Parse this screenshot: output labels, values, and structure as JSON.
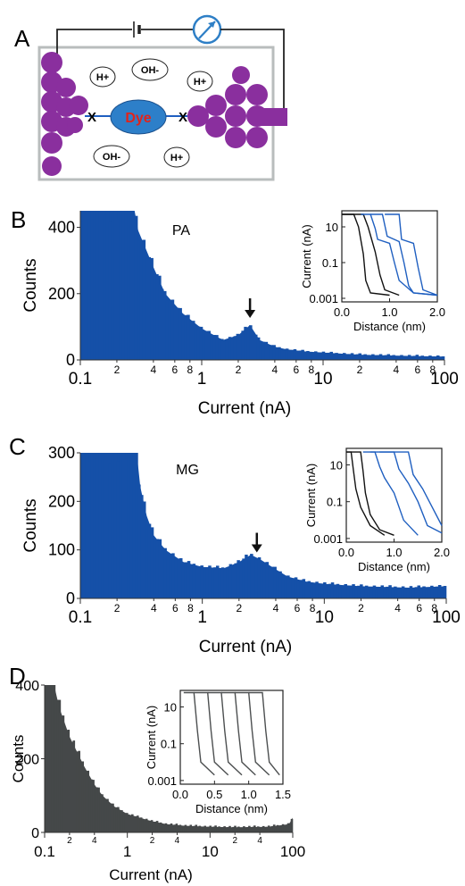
{
  "panels": {
    "A": {
      "letter": "A",
      "dye_label": "Dye",
      "linker_left": "X",
      "linker_right": "X",
      "ions": [
        "H+",
        "OH-",
        "H+",
        "OH-",
        "H+"
      ],
      "colors": {
        "electrode": "#8a2f9e",
        "dye": "#2d7fc9",
        "dye_text": "#e2231a",
        "wire": "#222222",
        "meter": "#2e7fc6",
        "box": "#b9bdbd"
      }
    },
    "B": {
      "letter": "B",
      "label": "PA"
    },
    "C": {
      "letter": "C",
      "label": "MG"
    },
    "D": {
      "letter": "D"
    }
  },
  "chart_data": [
    {
      "panel": "B",
      "type": "bar",
      "title": "PA",
      "xlabel": "Current (nA)",
      "ylabel": "Counts",
      "xscale": "log",
      "xlim": [
        0.1,
        100
      ],
      "ylim": [
        0,
        450
      ],
      "yticks": [
        0,
        200,
        400
      ],
      "xtick_major": [
        "0.1",
        "1",
        "10",
        "100"
      ],
      "xtick_minor": [
        "2",
        "4",
        "6",
        "8"
      ],
      "color": "#1550a8",
      "peak_marker_x": 2.5,
      "x": [
        0.1,
        0.2,
        0.28,
        0.3,
        0.4,
        0.5,
        0.7,
        1.0,
        1.5,
        2.0,
        2.5,
        3.0,
        4.0,
        5.0,
        7.0,
        10.0,
        20.0,
        50.0,
        100.0
      ],
      "values": [
        450,
        450,
        450,
        390,
        280,
        200,
        140,
        95,
        60,
        75,
        105,
        60,
        40,
        32,
        26,
        22,
        16,
        12,
        10
      ],
      "inset": {
        "xlabel": "Distance (nm)",
        "ylabel": "Current (nA)",
        "xlim": [
          0,
          2.0
        ],
        "xticks": [
          "0.0",
          "1.0",
          "2.0"
        ],
        "yscale": "log",
        "yticks": [
          "10",
          "0.1",
          "0.001"
        ],
        "series": [
          {
            "color": "#111111",
            "x": [
              0.0,
              0.25,
              0.35,
              0.45,
              0.5,
              0.6,
              1.0
            ],
            "y": [
              50,
              50,
              10,
              0.3,
              0.01,
              0.002,
              0.0015
            ]
          },
          {
            "color": "#111111",
            "x": [
              0.0,
              0.45,
              0.55,
              0.7,
              0.8,
              0.9,
              1.2
            ],
            "y": [
              50,
              50,
              10,
              0.4,
              0.02,
              0.003,
              0.0015
            ]
          },
          {
            "color": "#1f5fc0",
            "x": [
              0.4,
              0.6,
              0.7,
              0.75,
              1.0,
              1.1,
              1.2,
              1.5,
              2.0
            ],
            "y": [
              50,
              50,
              8,
              2,
              1.2,
              0.1,
              0.01,
              0.002,
              0.0015
            ]
          },
          {
            "color": "#1f5fc0",
            "x": [
              0.6,
              0.85,
              0.95,
              1.2,
              1.3,
              1.4,
              1.5,
              2.0
            ],
            "y": [
              50,
              50,
              3,
              1.5,
              0.1,
              0.005,
              0.002,
              0.0015
            ]
          },
          {
            "color": "#1f5fc0",
            "x": [
              0.9,
              1.2,
              1.25,
              1.5,
              1.6,
              1.7,
              2.0
            ],
            "y": [
              50,
              50,
              2,
              1.2,
              0.05,
              0.003,
              0.0015
            ]
          }
        ]
      }
    },
    {
      "panel": "C",
      "type": "bar",
      "title": "MG",
      "xlabel": "Current (nA)",
      "ylabel": "Counts",
      "xscale": "log",
      "xlim": [
        0.1,
        100
      ],
      "ylim": [
        0,
        300
      ],
      "yticks": [
        0,
        100,
        200,
        300
      ],
      "xtick_major": [
        "0.1",
        "1",
        "10",
        "100"
      ],
      "xtick_minor": [
        "2",
        "4",
        "6",
        "8"
      ],
      "color": "#1550a8",
      "peak_marker_x": 2.8,
      "x": [
        0.1,
        0.2,
        0.29,
        0.31,
        0.35,
        0.4,
        0.5,
        0.7,
        1.0,
        1.5,
        2.0,
        2.5,
        3.0,
        4.0,
        5.0,
        7.0,
        10.0,
        20.0,
        50.0,
        100.0
      ],
      "values": [
        300,
        300,
        300,
        230,
        170,
        130,
        100,
        75,
        65,
        62,
        75,
        90,
        80,
        60,
        45,
        35,
        30,
        25,
        22,
        25
      ],
      "inset": {
        "xlabel": "Distance (nm)",
        "ylabel": "Current (nA)",
        "xlim": [
          0,
          2.0
        ],
        "xticks": [
          "0.0",
          "1.0",
          "2.0"
        ],
        "yscale": "log",
        "yticks": [
          "10",
          "0.1",
          "0.001"
        ],
        "series": [
          {
            "color": "#111111",
            "x": [
              0.0,
              0.1,
              0.15,
              0.2,
              0.3,
              0.5,
              0.8
            ],
            "y": [
              50,
              50,
              5,
              0.5,
              0.05,
              0.005,
              0.0015
            ]
          },
          {
            "color": "#111111",
            "x": [
              0.0,
              0.3,
              0.35,
              0.4,
              0.5,
              0.7,
              1.0
            ],
            "y": [
              50,
              50,
              5,
              0.3,
              0.02,
              0.003,
              0.0015
            ]
          },
          {
            "color": "#1f5fc0",
            "x": [
              0.35,
              0.6,
              0.7,
              0.8,
              1.0,
              1.2,
              1.5
            ],
            "y": [
              50,
              50,
              8,
              2,
              0.3,
              0.01,
              0.0015
            ]
          },
          {
            "color": "#1f5fc0",
            "x": [
              0.5,
              1.0,
              1.1,
              1.3,
              1.5,
              1.7,
              2.0
            ],
            "y": [
              50,
              50,
              6,
              1,
              0.1,
              0.005,
              0.002
            ]
          },
          {
            "color": "#1f5fc0",
            "x": [
              0.7,
              1.3,
              1.4,
              1.6,
              1.8,
              2.0
            ],
            "y": [
              50,
              50,
              3,
              0.5,
              0.05,
              0.005
            ]
          }
        ]
      }
    },
    {
      "panel": "D",
      "type": "bar",
      "title": "",
      "xlabel": "Current (nA)",
      "ylabel": "Counts",
      "xscale": "log",
      "xlim": [
        0.1,
        100
      ],
      "ylim": [
        0,
        400
      ],
      "yticks": [
        0,
        200,
        400
      ],
      "xtick_major": [
        "0.1",
        "1",
        "10",
        "100"
      ],
      "xtick_minor": [
        "2",
        "4"
      ],
      "color": "#454849",
      "x": [
        0.1,
        0.13,
        0.15,
        0.2,
        0.3,
        0.4,
        0.5,
        0.7,
        1.0,
        2.0,
        3.0,
        5.0,
        10.0,
        20.0,
        50.0,
        90.0,
        100.0
      ],
      "values": [
        400,
        400,
        340,
        260,
        180,
        130,
        100,
        70,
        50,
        30,
        22,
        18,
        15,
        14,
        15,
        22,
        40
      ],
      "inset": {
        "xlabel": "Distance (nm)",
        "ylabel": "Current (nA)",
        "xlim": [
          0,
          1.5
        ],
        "xticks": [
          "0.0",
          "0.5",
          "1.0",
          "1.5"
        ],
        "yscale": "log",
        "yticks": [
          "10",
          "0.1",
          "0.001"
        ],
        "series": [
          {
            "color": "#4c4f50",
            "x": [
              0.05,
              0.2,
              0.25,
              0.3,
              0.5
            ],
            "y": [
              60,
              60,
              0.5,
              0.01,
              0.002
            ]
          },
          {
            "color": "#4c4f50",
            "x": [
              0.2,
              0.4,
              0.45,
              0.5,
              0.7
            ],
            "y": [
              60,
              60,
              0.5,
              0.01,
              0.002
            ]
          },
          {
            "color": "#4c4f50",
            "x": [
              0.4,
              0.6,
              0.65,
              0.7,
              0.9
            ],
            "y": [
              60,
              60,
              0.5,
              0.01,
              0.002
            ]
          },
          {
            "color": "#4c4f50",
            "x": [
              0.6,
              0.8,
              0.85,
              0.9,
              1.1
            ],
            "y": [
              60,
              60,
              0.5,
              0.01,
              0.002
            ]
          },
          {
            "color": "#4c4f50",
            "x": [
              0.8,
              1.0,
              1.05,
              1.1,
              1.3
            ],
            "y": [
              60,
              60,
              0.5,
              0.01,
              0.002
            ]
          },
          {
            "color": "#4c4f50",
            "x": [
              1.0,
              1.2,
              1.25,
              1.3,
              1.45
            ],
            "y": [
              60,
              60,
              0.5,
              0.01,
              0.002
            ]
          }
        ]
      }
    }
  ]
}
